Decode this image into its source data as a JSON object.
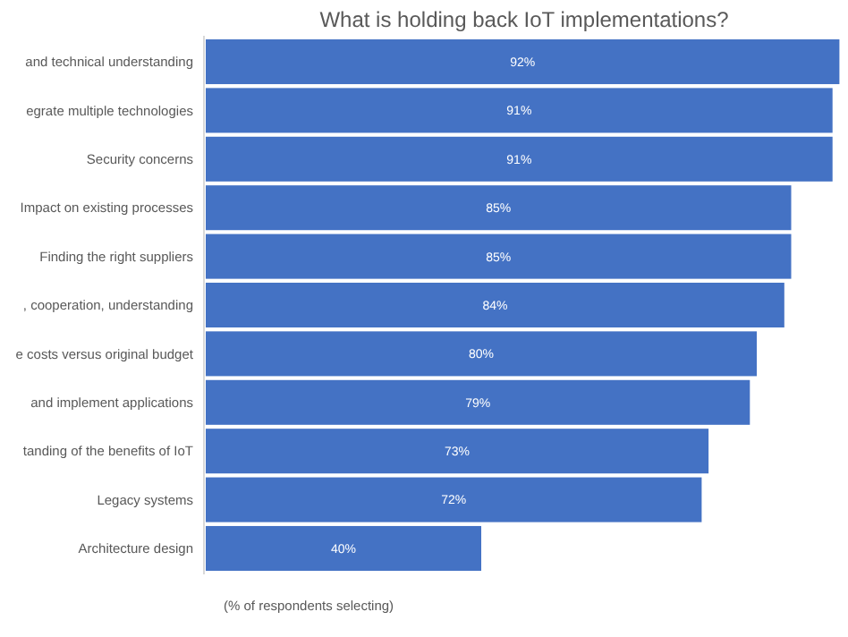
{
  "chart_data": {
    "type": "bar",
    "orientation": "horizontal",
    "title": "What is holding back IoT implementations?",
    "categories": [
      "and technical understanding",
      "egrate multiple technologies",
      "Security concerns",
      "Impact on existing processes",
      "Finding the right suppliers",
      ", cooperation, understanding",
      "e costs versus original budget",
      "and implement applications",
      "tanding of the benefits of IoT",
      "Legacy systems",
      "Architecture design"
    ],
    "values": [
      92,
      91,
      91,
      85,
      85,
      84,
      80,
      79,
      73,
      72,
      40
    ],
    "value_labels": [
      "92%",
      "91%",
      "91%",
      "85%",
      "85%",
      "84%",
      "80%",
      "79%",
      "73%",
      "72%",
      "40%"
    ],
    "color": "#4472c4",
    "tick_labels": "y",
    "annotations": [
      "(% of respondents  selecting)"
    ]
  }
}
